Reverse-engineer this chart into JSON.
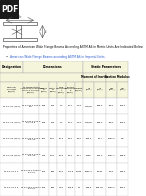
{
  "title": "Properties of American Wide Flange Beams According ASTM A6 in Metric Units Are Indicated Below",
  "link_text": "American Wide Flange Beams according ASTM A6 in Imperial Units",
  "header_bg": "#f5f5dc",
  "table_bg": "#ffffff",
  "fig_bg": "#ffffff",
  "rows": [
    [
      "Nominal\nd x lb/ft\n(kg/m)",
      "W designation\nAmerican Standard\nd x h x t\n(kg/m)",
      "Height\nd\n(mm)",
      "Width\nb\n(mm)",
      "Web\nThickness\nt\n(mm)",
      "Flange\nthickness\nk\n(mm)",
      "Weight\n(kg/m)",
      "Ix\n(cm⁴)",
      "Iy\n(cm⁴)",
      "Wx\n(cm³)",
      "Wy\n(cm³)"
    ],
    [
      "W 8 x 10 (15.0)",
      "W 8 200 x 100 x\n6.4",
      "206",
      "102",
      "7.1",
      "10.2",
      "14.9",
      "1120/8",
      "889.0",
      "89.9",
      "152.2"
    ],
    [
      "W 8 x 13 (19.3)",
      "W 8 250 x 102 x\n8 x 13.3",
      "206",
      "102",
      "7.1",
      "10.2",
      "14.9",
      "1120/8",
      "889.0",
      "89.9",
      "152.2"
    ],
    [
      "W 8 x 15 (22.3)",
      "W 8 200 x 102 x\n8 x 15",
      "207",
      "5.27",
      "16.3",
      "60.4",
      "22.0",
      "660.0",
      "60.1",
      "1060.0",
      "6.9"
    ],
    [
      "W 8 x 18 (26.8)",
      "W 8 200 x 102 x\n8 x 18",
      "210",
      "5.08",
      "16.8",
      "61.4",
      "26.1",
      "6999",
      "862.0",
      "1067.7",
      "518.8"
    ],
    [
      "W 8 x 21 x 1",
      "W 8 250 x 1000 x\n8 x 21",
      "750",
      "380",
      "16.5",
      "171.5",
      "5.03x",
      "6805.4",
      "35.83",
      "53.8",
      "536.6"
    ],
    [
      "W 8 x 21 x 5",
      "W 8 250 x 1000 x\n8 x 21",
      "750",
      "380",
      "74.8",
      "135.8",
      "53",
      "825.0",
      "425.78",
      "1030.0",
      "254.4"
    ]
  ]
}
